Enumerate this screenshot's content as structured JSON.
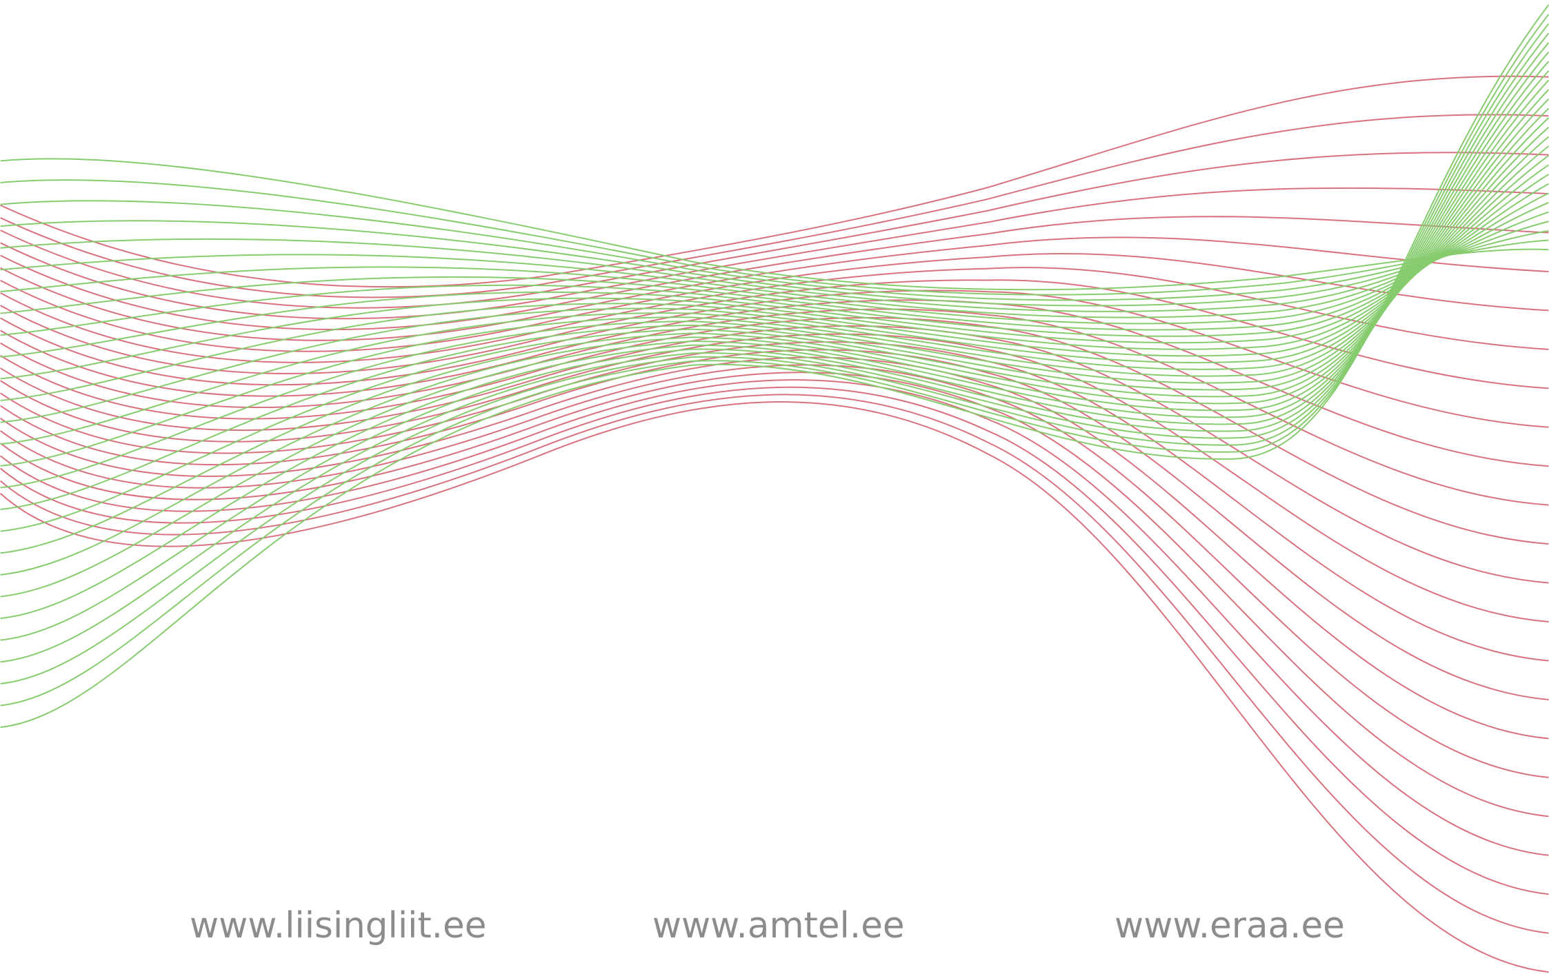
{
  "links": [
    "www.liisingliit.ee",
    "www.amtel.ee",
    "www.eraa.ee"
  ]
}
